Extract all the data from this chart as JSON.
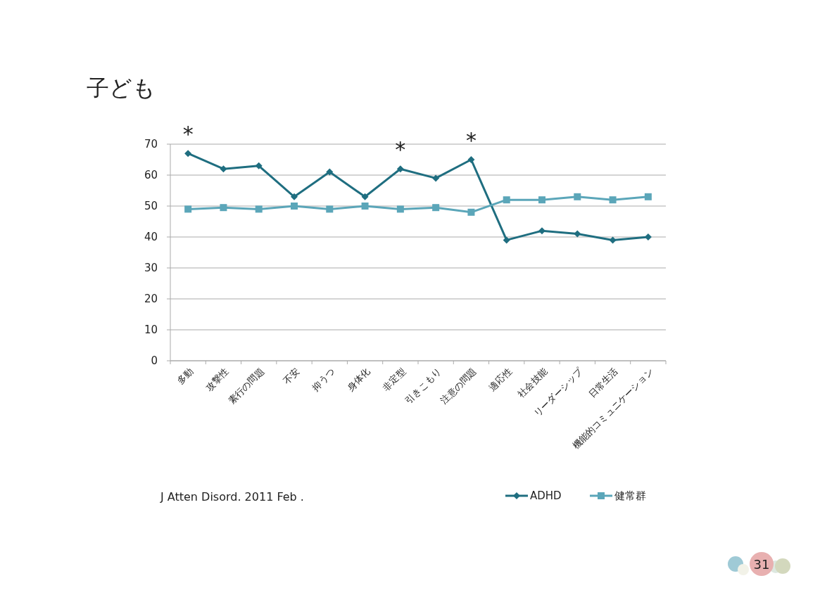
{
  "chart_data": {
    "type": "line",
    "title": "子ども",
    "categories": [
      "多動",
      "攻撃性",
      "素行の問題",
      "不安",
      "抑うつ",
      "身体化",
      "非定型",
      "引きこもり",
      "注意の問題",
      "適応性",
      "社会技能",
      "リーダーシップ",
      "日常生活",
      "機能的コミュニケーション"
    ],
    "series": [
      {
        "name": "ADHD",
        "color": "#1f6e80",
        "marker": "diamond",
        "values": [
          67,
          62,
          63,
          53,
          61,
          53,
          62,
          59,
          65,
          39,
          42,
          41,
          39,
          40
        ]
      },
      {
        "name": "健常群",
        "color": "#5ba6b9",
        "marker": "square",
        "values": [
          49,
          49.5,
          49,
          50,
          49,
          50,
          49,
          49.5,
          48,
          52,
          52,
          53,
          52,
          53
        ]
      }
    ],
    "ylim": [
      0,
      70
    ],
    "yticks": [
      0,
      10,
      20,
      30,
      40,
      50,
      60,
      70
    ],
    "grid": "y",
    "legend": "bottom right",
    "line_style": "solid",
    "annotations": [
      "*",
      "*",
      "*",
      "J Atten Disord. 2011 Feb .",
      "31"
    ]
  }
}
